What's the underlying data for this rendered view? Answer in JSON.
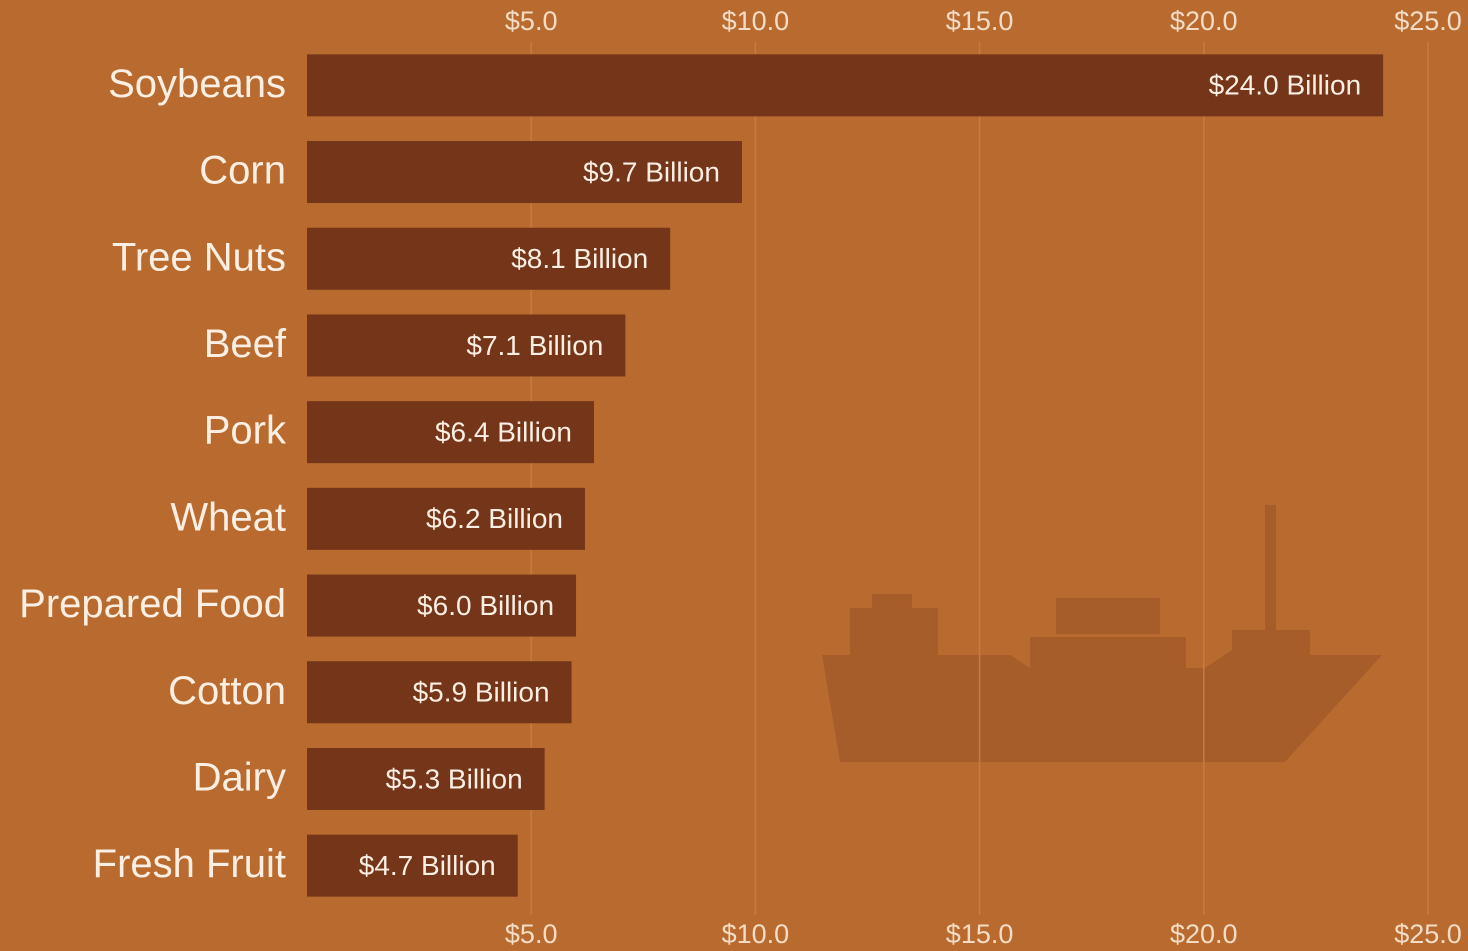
{
  "chart_data": {
    "type": "bar",
    "categories": [
      "Soybeans",
      "Corn",
      "Tree Nuts",
      "Beef",
      "Pork",
      "Wheat",
      "Prepared Food",
      "Cotton",
      "Dairy",
      "Fresh Fruit"
    ],
    "values": [
      24.0,
      9.7,
      8.1,
      7.1,
      6.4,
      6.2,
      6.0,
      5.9,
      5.3,
      4.7
    ],
    "value_labels": [
      "$24.0 Billion",
      "$9.7 Billion",
      "$8.1 Billion",
      "$7.1 Billion",
      "$6.4 Billion",
      "$6.2 Billion",
      "$6.0 Billion",
      "$5.9 Billion",
      "$5.3 Billion",
      "$4.7 Billion"
    ],
    "color": "#743519",
    "xlim": [
      0,
      25
    ],
    "xticks": [
      {
        "value": 5,
        "label": "$5.0"
      },
      {
        "value": 10,
        "label": "$10.0"
      },
      {
        "value": 15,
        "label": "$15.0"
      },
      {
        "value": 20,
        "label": "$20.0"
      },
      {
        "value": 25,
        "label": "$25.0"
      }
    ],
    "grid": true
  }
}
